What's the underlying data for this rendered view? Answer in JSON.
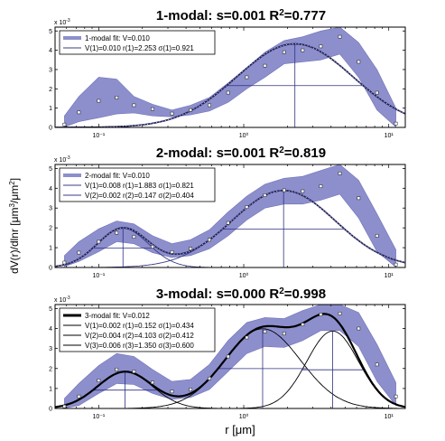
{
  "figure": {
    "ylabel_main": "dV(r)/dlnr [μm",
    "ylabel_sup1": "3",
    "ylabel_mid": "/μm",
    "ylabel_sup2": "2",
    "ylabel_end": "]",
    "xlabel": "r [μm]",
    "exponent_label": "x 10",
    "exponent_value": "-3"
  },
  "chart_data": [
    {
      "type": "line",
      "title_main": "1-modal: s=0.001 R",
      "title_sup": "2",
      "title_rest": "=0.777",
      "xscale": "log",
      "xlim": [
        0.05,
        13
      ],
      "ylim": [
        0,
        5.2
      ],
      "y_ticks": [
        0,
        1,
        2,
        3,
        4,
        5
      ],
      "x_ticks": [
        0.1,
        1,
        10
      ],
      "x_tick_labels": [
        "10⁻¹",
        "10⁰",
        "10¹"
      ],
      "band_color": "#8d8fcd",
      "fit_color": "#1f1f58",
      "markers": [
        {
          "r": 0.058,
          "v": 0.15
        },
        {
          "r": 0.073,
          "v": 0.78
        },
        {
          "r": 0.1,
          "v": 1.38
        },
        {
          "r": 0.133,
          "v": 1.55
        },
        {
          "r": 0.175,
          "v": 1.15
        },
        {
          "r": 0.235,
          "v": 0.95
        },
        {
          "r": 0.32,
          "v": 0.72
        },
        {
          "r": 0.43,
          "v": 0.9
        },
        {
          "r": 0.58,
          "v": 1.15
        },
        {
          "r": 0.78,
          "v": 1.8
        },
        {
          "r": 1.05,
          "v": 2.6
        },
        {
          "r": 1.4,
          "v": 3.2
        },
        {
          "r": 1.9,
          "v": 3.9
        },
        {
          "r": 2.55,
          "v": 4.0
        },
        {
          "r": 3.4,
          "v": 4.2
        },
        {
          "r": 4.6,
          "v": 4.7
        },
        {
          "r": 6.2,
          "v": 3.4
        },
        {
          "r": 8.3,
          "v": 1.8
        },
        {
          "r": 11.2,
          "v": 0.2
        }
      ],
      "band": {
        "upper": [
          0.6,
          1.6,
          2.6,
          2.5,
          1.6,
          1.2,
          0.9,
          1.15,
          1.55,
          2.3,
          3.1,
          3.9,
          4.5,
          4.7,
          5.0,
          5.2,
          4.4,
          3.0,
          1.0
        ],
        "lower": [
          0.02,
          0.3,
          0.5,
          0.7,
          0.75,
          0.6,
          0.55,
          0.65,
          0.85,
          1.3,
          2.0,
          2.6,
          3.3,
          3.4,
          3.5,
          3.8,
          2.6,
          0.9,
          0.02
        ]
      },
      "series": [
        {
          "label": "1-modal fit: V=0.010",
          "kind": "band-legend"
        },
        {
          "label": "V(1)=0.010 r(1)=2.253 σ(1)=0.921",
          "kind": "mode",
          "V": 0.01,
          "r": 2.253,
          "sigma": 0.921
        }
      ],
      "legend_position": "top-left"
    },
    {
      "type": "line",
      "title_main": "2-modal: s=0.001 R",
      "title_sup": "2",
      "title_rest": "=0.819",
      "xscale": "log",
      "xlim": [
        0.05,
        13
      ],
      "ylim": [
        0,
        5.2
      ],
      "y_ticks": [
        0,
        1,
        2,
        3,
        4,
        5
      ],
      "x_ticks": [
        0.1,
        1,
        10
      ],
      "x_tick_labels": [
        "10⁻¹",
        "10⁰",
        "10¹"
      ],
      "band_color": "#8d8fcd",
      "fit_color": "#1f1f58",
      "markers": [
        {
          "r": 0.058,
          "v": 0.25
        },
        {
          "r": 0.073,
          "v": 0.75
        },
        {
          "r": 0.1,
          "v": 1.3
        },
        {
          "r": 0.133,
          "v": 1.75
        },
        {
          "r": 0.175,
          "v": 1.55
        },
        {
          "r": 0.235,
          "v": 1.05
        },
        {
          "r": 0.32,
          "v": 0.78
        },
        {
          "r": 0.43,
          "v": 0.95
        },
        {
          "r": 0.58,
          "v": 1.4
        },
        {
          "r": 0.78,
          "v": 2.25
        },
        {
          "r": 1.05,
          "v": 3.05
        },
        {
          "r": 1.4,
          "v": 3.65
        },
        {
          "r": 1.9,
          "v": 3.9
        },
        {
          "r": 2.55,
          "v": 3.85
        },
        {
          "r": 3.4,
          "v": 4.1
        },
        {
          "r": 4.6,
          "v": 4.75
        },
        {
          "r": 6.2,
          "v": 3.5
        },
        {
          "r": 8.3,
          "v": 1.6
        },
        {
          "r": 11.2,
          "v": 0.15
        }
      ],
      "band": {
        "upper": [
          0.6,
          1.3,
          1.95,
          2.35,
          2.2,
          1.6,
          1.2,
          1.4,
          1.9,
          2.8,
          3.6,
          4.2,
          4.5,
          4.6,
          4.9,
          5.2,
          4.4,
          2.7,
          0.9
        ],
        "lower": [
          0.05,
          0.3,
          0.8,
          1.3,
          1.2,
          0.75,
          0.5,
          0.6,
          0.95,
          1.6,
          2.4,
          3.0,
          3.2,
          3.2,
          3.4,
          3.7,
          2.5,
          0.8,
          0.02
        ]
      },
      "series": [
        {
          "label": "2-modal fit: V=0.010",
          "kind": "band-legend"
        },
        {
          "label": "V(1)=0.008 r(1)=1.883 σ(1)=0.821",
          "kind": "mode",
          "V": 0.008,
          "r": 1.883,
          "sigma": 0.821
        },
        {
          "label": "V(2)=0.002 r(2)=0.147 σ(2)=0.404",
          "kind": "mode",
          "V": 0.002,
          "r": 0.147,
          "sigma": 0.404
        }
      ],
      "legend_position": "top-left"
    },
    {
      "type": "line",
      "title_main": "3-modal: s=0.000 R",
      "title_sup": "2",
      "title_rest": "=0.998",
      "xscale": "log",
      "xlim": [
        0.05,
        13
      ],
      "ylim": [
        0,
        5.2
      ],
      "y_ticks": [
        0,
        1,
        2,
        3,
        4,
        5
      ],
      "x_ticks": [
        0.1,
        1,
        10
      ],
      "x_tick_labels": [
        "10⁻¹",
        "10⁰",
        "10¹"
      ],
      "band_color": "#8d8fcd",
      "fit_color": "#000000",
      "markers": [
        {
          "r": 0.058,
          "v": 0.1
        },
        {
          "r": 0.073,
          "v": 0.6
        },
        {
          "r": 0.1,
          "v": 1.4
        },
        {
          "r": 0.133,
          "v": 1.95
        },
        {
          "r": 0.175,
          "v": 1.85
        },
        {
          "r": 0.235,
          "v": 1.3
        },
        {
          "r": 0.32,
          "v": 0.85
        },
        {
          "r": 0.43,
          "v": 0.95
        },
        {
          "r": 0.58,
          "v": 1.5
        },
        {
          "r": 0.78,
          "v": 2.6
        },
        {
          "r": 1.05,
          "v": 3.55
        },
        {
          "r": 1.4,
          "v": 3.85
        },
        {
          "r": 1.9,
          "v": 3.75
        },
        {
          "r": 2.55,
          "v": 4.2
        },
        {
          "r": 3.4,
          "v": 4.7
        },
        {
          "r": 4.6,
          "v": 4.75
        },
        {
          "r": 6.2,
          "v": 4.0
        },
        {
          "r": 8.3,
          "v": 2.2
        },
        {
          "r": 11.2,
          "v": 0.6
        }
      ],
      "band": {
        "upper": [
          0.5,
          1.25,
          2.15,
          2.75,
          2.6,
          1.95,
          1.35,
          1.45,
          2.2,
          3.4,
          4.3,
          4.55,
          4.5,
          4.9,
          5.2,
          5.2,
          4.8,
          3.2,
          1.3
        ],
        "lower": [
          0.02,
          0.15,
          0.75,
          1.25,
          1.2,
          0.75,
          0.45,
          0.55,
          0.95,
          1.85,
          2.75,
          3.1,
          3.05,
          3.4,
          3.9,
          3.9,
          3.1,
          1.35,
          0.15
        ]
      },
      "series": [
        {
          "label": "3-modal fit: V=0.012",
          "kind": "fit-legend"
        },
        {
          "label": "V(1)=0.002 r(1)=0.152 σ(1)=0.434",
          "kind": "mode",
          "V": 0.002,
          "r": 0.152,
          "sigma": 0.434
        },
        {
          "label": "V(2)=0.004 r(2)=4.103 σ(2)=0.412",
          "kind": "mode",
          "V": 0.004,
          "r": 4.103,
          "sigma": 0.412
        },
        {
          "label": "V(3)=0.006 r(3)=1.350 σ(3)=0.600",
          "kind": "mode",
          "V": 0.006,
          "r": 1.35,
          "sigma": 0.6
        }
      ],
      "legend_position": "top-left"
    }
  ]
}
